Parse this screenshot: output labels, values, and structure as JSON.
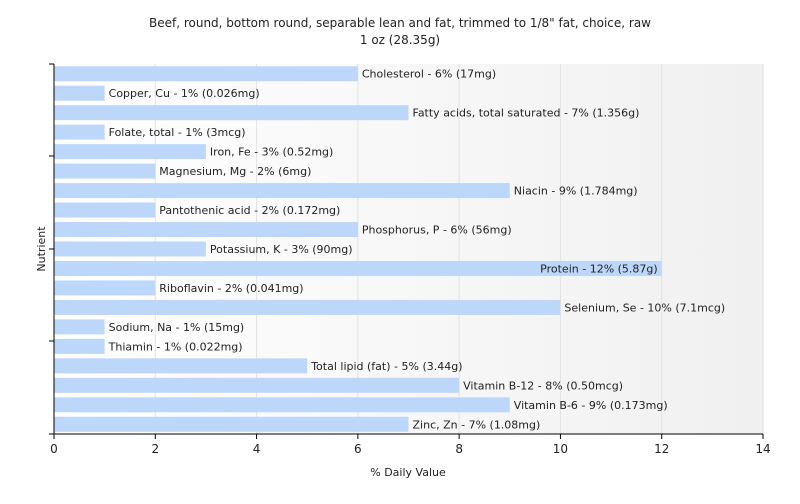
{
  "chart_data": {
    "type": "bar",
    "orientation": "horizontal",
    "title": "Beef, round, bottom round, separable lean and fat, trimmed to 1/8\" fat, choice, raw",
    "subtitle": "1 oz (28.35g)",
    "xlabel": "% Daily Value",
    "ylabel": "Nutrient",
    "xlim": [
      0,
      14
    ],
    "xticks": [
      0,
      2,
      4,
      6,
      8,
      10,
      12,
      14
    ],
    "grid": true,
    "bar_color": "#bdd7fb",
    "categories": [
      "Cholesterol",
      "Copper, Cu",
      "Fatty acids, total saturated",
      "Folate, total",
      "Iron, Fe",
      "Magnesium, Mg",
      "Niacin",
      "Pantothenic acid",
      "Phosphorus, P",
      "Potassium, K",
      "Protein",
      "Riboflavin",
      "Selenium, Se",
      "Sodium, Na",
      "Thiamin",
      "Total lipid (fat)",
      "Vitamin B-12",
      "Vitamin B-6",
      "Zinc, Zn"
    ],
    "values": [
      6,
      1,
      7,
      1,
      3,
      2,
      9,
      2,
      6,
      3,
      12,
      2,
      10,
      1,
      1,
      5,
      8,
      9,
      7
    ],
    "labels": [
      "Cholesterol - 6% (17mg)",
      "Copper, Cu - 1% (0.026mg)",
      "Fatty acids, total saturated - 7% (1.356g)",
      "Folate, total - 1% (3mcg)",
      "Iron, Fe - 3% (0.52mg)",
      "Magnesium, Mg - 2% (6mg)",
      "Niacin - 9% (1.784mg)",
      "Pantothenic acid - 2% (0.172mg)",
      "Phosphorus, P - 6% (56mg)",
      "Potassium, K - 3% (90mg)",
      "Protein - 12% (5.87g)",
      "Riboflavin - 2% (0.041mg)",
      "Selenium, Se - 10% (7.1mcg)",
      "Sodium, Na - 1% (15mg)",
      "Thiamin - 1% (0.022mg)",
      "Total lipid (fat) - 5% (3.44g)",
      "Vitamin B-12 - 8% (0.50mcg)",
      "Vitamin B-6 - 9% (0.173mg)",
      "Zinc, Zn - 7% (1.08mg)"
    ]
  }
}
